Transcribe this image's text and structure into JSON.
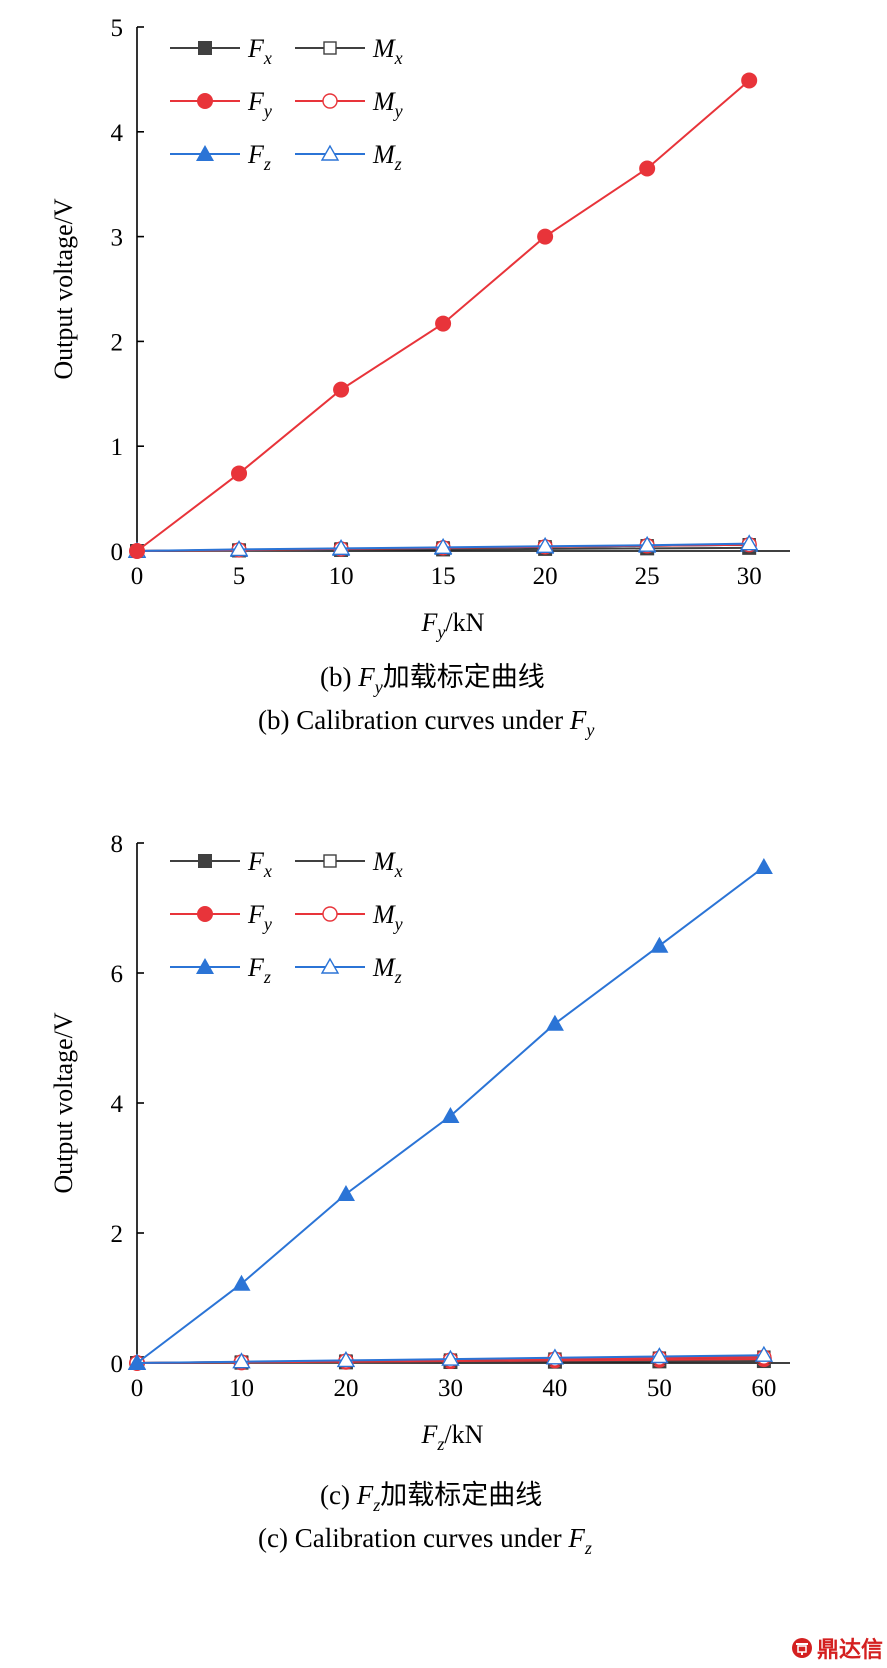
{
  "colors": {
    "Fx": "#404040",
    "Fy": "#e8343a",
    "Fz": "#2b74d6",
    "Mx": "#404040",
    "My": "#e8343a",
    "Mz": "#2b74d6",
    "watermark": "#d42020"
  },
  "legend_entries": [
    {
      "id": "Fx",
      "base": "F",
      "sub": "x",
      "marker": "filled-square"
    },
    {
      "id": "Mx",
      "base": "M",
      "sub": "x",
      "marker": "open-square"
    },
    {
      "id": "Fy",
      "base": "F",
      "sub": "y",
      "marker": "filled-circle"
    },
    {
      "id": "My",
      "base": "M",
      "sub": "y",
      "marker": "open-circle"
    },
    {
      "id": "Fz",
      "base": "F",
      "sub": "z",
      "marker": "filled-triangle"
    },
    {
      "id": "Mz",
      "base": "M",
      "sub": "z",
      "marker": "open-triangle"
    }
  ],
  "chart_data": [
    {
      "type": "line",
      "ylabel": "Output voltage/V",
      "xlabel_base": "F",
      "xlabel_sub": "y",
      "xlabel_unit": "/kN",
      "x": [
        0,
        5,
        10,
        15,
        20,
        25,
        30
      ],
      "xticks": [
        0,
        5,
        10,
        15,
        20,
        25,
        30
      ],
      "yticks": [
        0,
        1,
        2,
        3,
        4,
        5
      ],
      "xlim": [
        0,
        32
      ],
      "ylim": [
        0,
        5
      ],
      "legend": "top-left",
      "grid": false,
      "series": [
        {
          "name": "Fx",
          "values": [
            0,
            0.005,
            0.01,
            0.015,
            0.02,
            0.025,
            0.03
          ]
        },
        {
          "name": "Fy",
          "values": [
            0,
            0.74,
            1.54,
            2.17,
            3.0,
            3.65,
            4.49
          ]
        },
        {
          "name": "Fz",
          "values": [
            0,
            0.01,
            0.02,
            0.03,
            0.04,
            0.05,
            0.06
          ]
        },
        {
          "name": "Mx",
          "values": [
            0,
            0.01,
            0.02,
            0.03,
            0.04,
            0.05,
            0.06
          ]
        },
        {
          "name": "My",
          "values": [
            0,
            0.01,
            0.02,
            0.03,
            0.04,
            0.05,
            0.06
          ]
        },
        {
          "name": "Mz",
          "values": [
            0,
            0.015,
            0.025,
            0.035,
            0.045,
            0.055,
            0.07
          ]
        }
      ],
      "caption_cn": {
        "prefix": "(b) ",
        "base": "F",
        "sub": "y",
        "suffix": "加载标定曲线"
      },
      "caption_en": {
        "prefix": "(b) Calibration curves under ",
        "base": "F",
        "sub": "y"
      }
    },
    {
      "type": "line",
      "ylabel": "Output voltage/V",
      "xlabel_base": "F",
      "xlabel_sub": "z",
      "xlabel_unit": "/kN",
      "x": [
        0,
        10,
        20,
        30,
        40,
        50,
        60
      ],
      "xticks": [
        0,
        10,
        20,
        30,
        40,
        50,
        60
      ],
      "yticks": [
        0,
        2,
        4,
        6,
        8
      ],
      "xlim": [
        0,
        62.5
      ],
      "ylim": [
        0,
        8
      ],
      "legend": "top-left",
      "grid": false,
      "series": [
        {
          "name": "Fx",
          "values": [
            0,
            0.005,
            0.01,
            0.015,
            0.02,
            0.025,
            0.03
          ]
        },
        {
          "name": "Fy",
          "values": [
            0,
            0.01,
            0.02,
            0.03,
            0.04,
            0.05,
            0.06
          ]
        },
        {
          "name": "Fz",
          "values": [
            0,
            1.22,
            2.6,
            3.8,
            5.22,
            6.42,
            7.63
          ]
        },
        {
          "name": "Mx",
          "values": [
            0,
            0.015,
            0.03,
            0.045,
            0.06,
            0.075,
            0.09
          ]
        },
        {
          "name": "My",
          "values": [
            0,
            0.015,
            0.03,
            0.045,
            0.06,
            0.075,
            0.09
          ]
        },
        {
          "name": "Mz",
          "values": [
            0,
            0.02,
            0.04,
            0.06,
            0.08,
            0.1,
            0.12
          ]
        }
      ],
      "caption_cn": {
        "prefix": "(c) ",
        "base": "F",
        "sub": "z",
        "suffix": "加载标定曲线"
      },
      "caption_en": {
        "prefix": "(c) Calibration curves under ",
        "base": "F",
        "sub": "z"
      }
    }
  ],
  "watermark": {
    "text": "鼎达信"
  }
}
